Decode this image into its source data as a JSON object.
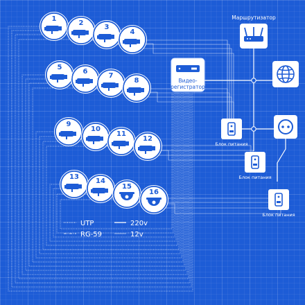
{
  "colors": {
    "background": "#1d5cd6",
    "line": "#ffffff",
    "node_fill": "#ffffff",
    "icon": "#1d5cd6"
  },
  "cameras": [
    {
      "number": "1",
      "kind": "bullet"
    },
    {
      "number": "2",
      "kind": "bullet"
    },
    {
      "number": "3",
      "kind": "bullet"
    },
    {
      "number": "4",
      "kind": "bullet"
    },
    {
      "number": "5",
      "kind": "bullet"
    },
    {
      "number": "6",
      "kind": "bullet"
    },
    {
      "number": "7",
      "kind": "bullet"
    },
    {
      "number": "8",
      "kind": "bullet"
    },
    {
      "number": "9",
      "kind": "bullet"
    },
    {
      "number": "10",
      "kind": "bullet"
    },
    {
      "number": "11",
      "kind": "bullet"
    },
    {
      "number": "12",
      "kind": "bullet"
    },
    {
      "number": "13",
      "kind": "bullet"
    },
    {
      "number": "14",
      "kind": "bullet"
    },
    {
      "number": "15",
      "kind": "dome"
    },
    {
      "number": "16",
      "kind": "dome"
    }
  ],
  "recorder": {
    "label_line1": "Видео-",
    "label_line2": "регистратор",
    "icon": "nvr-icon"
  },
  "router": {
    "label": "Маршрутизатор",
    "icon": "router-icon"
  },
  "internet": {
    "icon": "globe-icon"
  },
  "outlet": {
    "icon": "power-outlet-icon"
  },
  "power_supplies": [
    {
      "label": "Блок питания"
    },
    {
      "label": "Блок питания"
    },
    {
      "label": "Блок питания"
    }
  ],
  "legend": [
    {
      "label": "UTP",
      "style": "dotted"
    },
    {
      "label": "220v",
      "style": "solid"
    },
    {
      "label": "RG-59",
      "style": "dash-dot"
    },
    {
      "label": "12v",
      "style": "thin"
    }
  ]
}
